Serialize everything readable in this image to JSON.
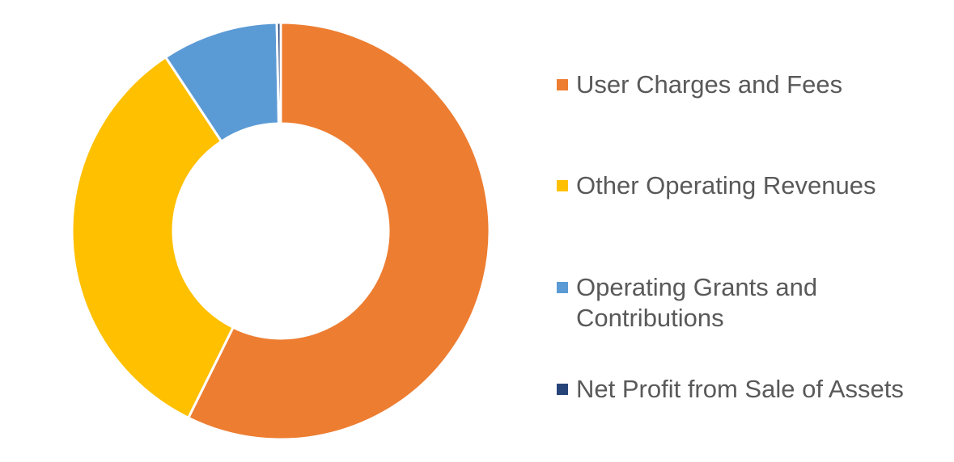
{
  "chart_data": {
    "type": "pie",
    "variant": "donut",
    "title": "",
    "legend_position": "right",
    "slices": [
      {
        "label": "User Charges and Fees",
        "value": 57.3,
        "color": "#ED7D31"
      },
      {
        "label": "Other Operating Revenues",
        "value": 33.4,
        "color": "#FFC000"
      },
      {
        "label": "Operating Grants and Contributions",
        "value": 9.0,
        "color": "#5B9BD5"
      },
      {
        "label": "Net Profit from Sale of Assets",
        "value": 0.3,
        "color": "#264478"
      }
    ]
  }
}
